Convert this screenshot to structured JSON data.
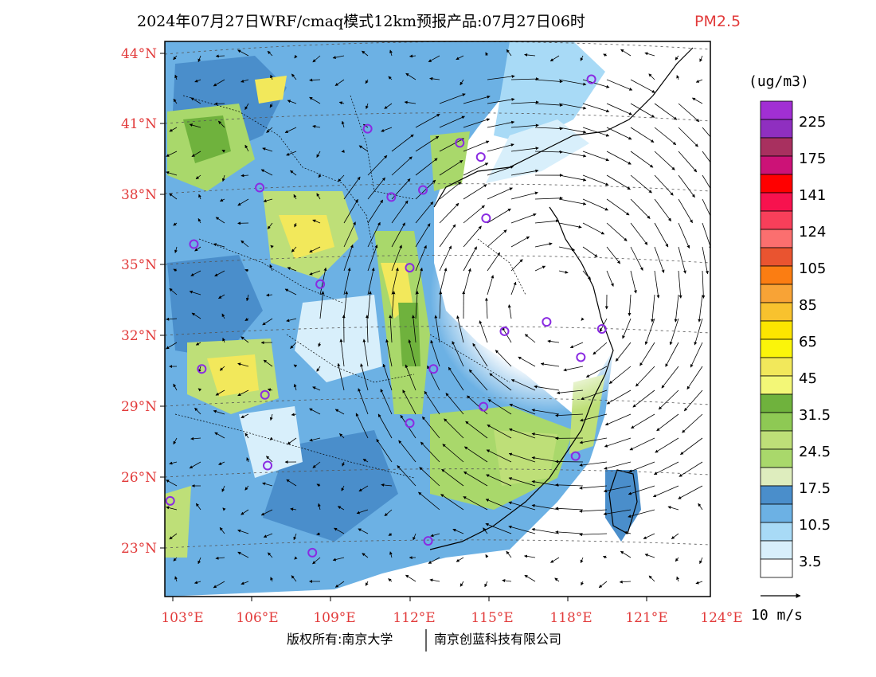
{
  "title": {
    "main": "2024年07月27日WRF/cmaq模式12km预报产品:07月27日06时",
    "variable": "PM2.5"
  },
  "colors": {
    "accent_red": "#e23b3b",
    "land": "#5aa0d4",
    "station": "#8a2be2"
  },
  "axes": {
    "lat_labels": [
      "44°N",
      "41°N",
      "38°N",
      "35°N",
      "32°N",
      "29°N",
      "26°N",
      "23°N"
    ],
    "lon_labels": [
      "103°E",
      "106°E",
      "109°E",
      "112°E",
      "115°E",
      "118°E",
      "121°E",
      "124°E"
    ]
  },
  "colorbar": {
    "unit": "(ug/m3)",
    "levels": [
      {
        "label": "225",
        "color": "#a12fd3"
      },
      {
        "label": "",
        "color": "#8f2fc0"
      },
      {
        "label": "175",
        "color": "#a8305f"
      },
      {
        "label": "",
        "color": "#cc1277"
      },
      {
        "label": "141",
        "color": "#ff0000"
      },
      {
        "label": "",
        "color": "#f7124e"
      },
      {
        "label": "124",
        "color": "#f83f5a"
      },
      {
        "label": "",
        "color": "#fb6f6f"
      },
      {
        "label": "105",
        "color": "#e95430"
      },
      {
        "label": "",
        "color": "#fb7d12"
      },
      {
        "label": "85",
        "color": "#f8a336"
      },
      {
        "label": "",
        "color": "#f8c22e"
      },
      {
        "label": "65",
        "color": "#fce500"
      },
      {
        "label": "",
        "color": "#fbf50a"
      },
      {
        "label": "45",
        "color": "#f2e85b"
      },
      {
        "label": "",
        "color": "#f3f777"
      },
      {
        "label": "31.5",
        "color": "#6fb23d"
      },
      {
        "label": "",
        "color": "#8ec954"
      },
      {
        "label": "24.5",
        "color": "#bedf78"
      },
      {
        "label": "",
        "color": "#a9d86b"
      },
      {
        "label": "17.5",
        "color": "#deedbe"
      },
      {
        "label": "",
        "color": "#4a8ecb"
      },
      {
        "label": "10.5",
        "color": "#6cb1e4"
      },
      {
        "label": "",
        "color": "#a8daf6"
      },
      {
        "label": "3.5",
        "color": "#d8effb"
      },
      {
        "label": "",
        "color": "#ffffff"
      }
    ]
  },
  "wind_legend": {
    "label": "10 m/s"
  },
  "copyright": {
    "left": "版权所有:南京大学",
    "right": "南京创蓝科技有限公司"
  },
  "stations": [
    {
      "lon": 118.9,
      "lat": 42.9
    },
    {
      "lon": 110.4,
      "lat": 40.8
    },
    {
      "lon": 113.9,
      "lat": 40.2
    },
    {
      "lon": 114.7,
      "lat": 39.6
    },
    {
      "lon": 106.3,
      "lat": 38.3
    },
    {
      "lon": 111.3,
      "lat": 37.9
    },
    {
      "lon": 112.5,
      "lat": 38.2
    },
    {
      "lon": 114.9,
      "lat": 37.0
    },
    {
      "lon": 103.8,
      "lat": 35.9
    },
    {
      "lon": 112.0,
      "lat": 34.9
    },
    {
      "lon": 108.6,
      "lat": 34.2
    },
    {
      "lon": 115.6,
      "lat": 32.2
    },
    {
      "lon": 117.2,
      "lat": 32.6
    },
    {
      "lon": 119.3,
      "lat": 32.3
    },
    {
      "lon": 118.5,
      "lat": 31.1
    },
    {
      "lon": 104.1,
      "lat": 30.6
    },
    {
      "lon": 112.9,
      "lat": 30.6
    },
    {
      "lon": 106.5,
      "lat": 29.5
    },
    {
      "lon": 114.8,
      "lat": 29.0
    },
    {
      "lon": 112.0,
      "lat": 28.3
    },
    {
      "lon": 118.3,
      "lat": 26.9
    },
    {
      "lon": 106.6,
      "lat": 26.5
    },
    {
      "lon": 102.9,
      "lat": 25.0
    },
    {
      "lon": 112.7,
      "lat": 23.3
    },
    {
      "lon": 108.3,
      "lat": 22.8
    }
  ]
}
